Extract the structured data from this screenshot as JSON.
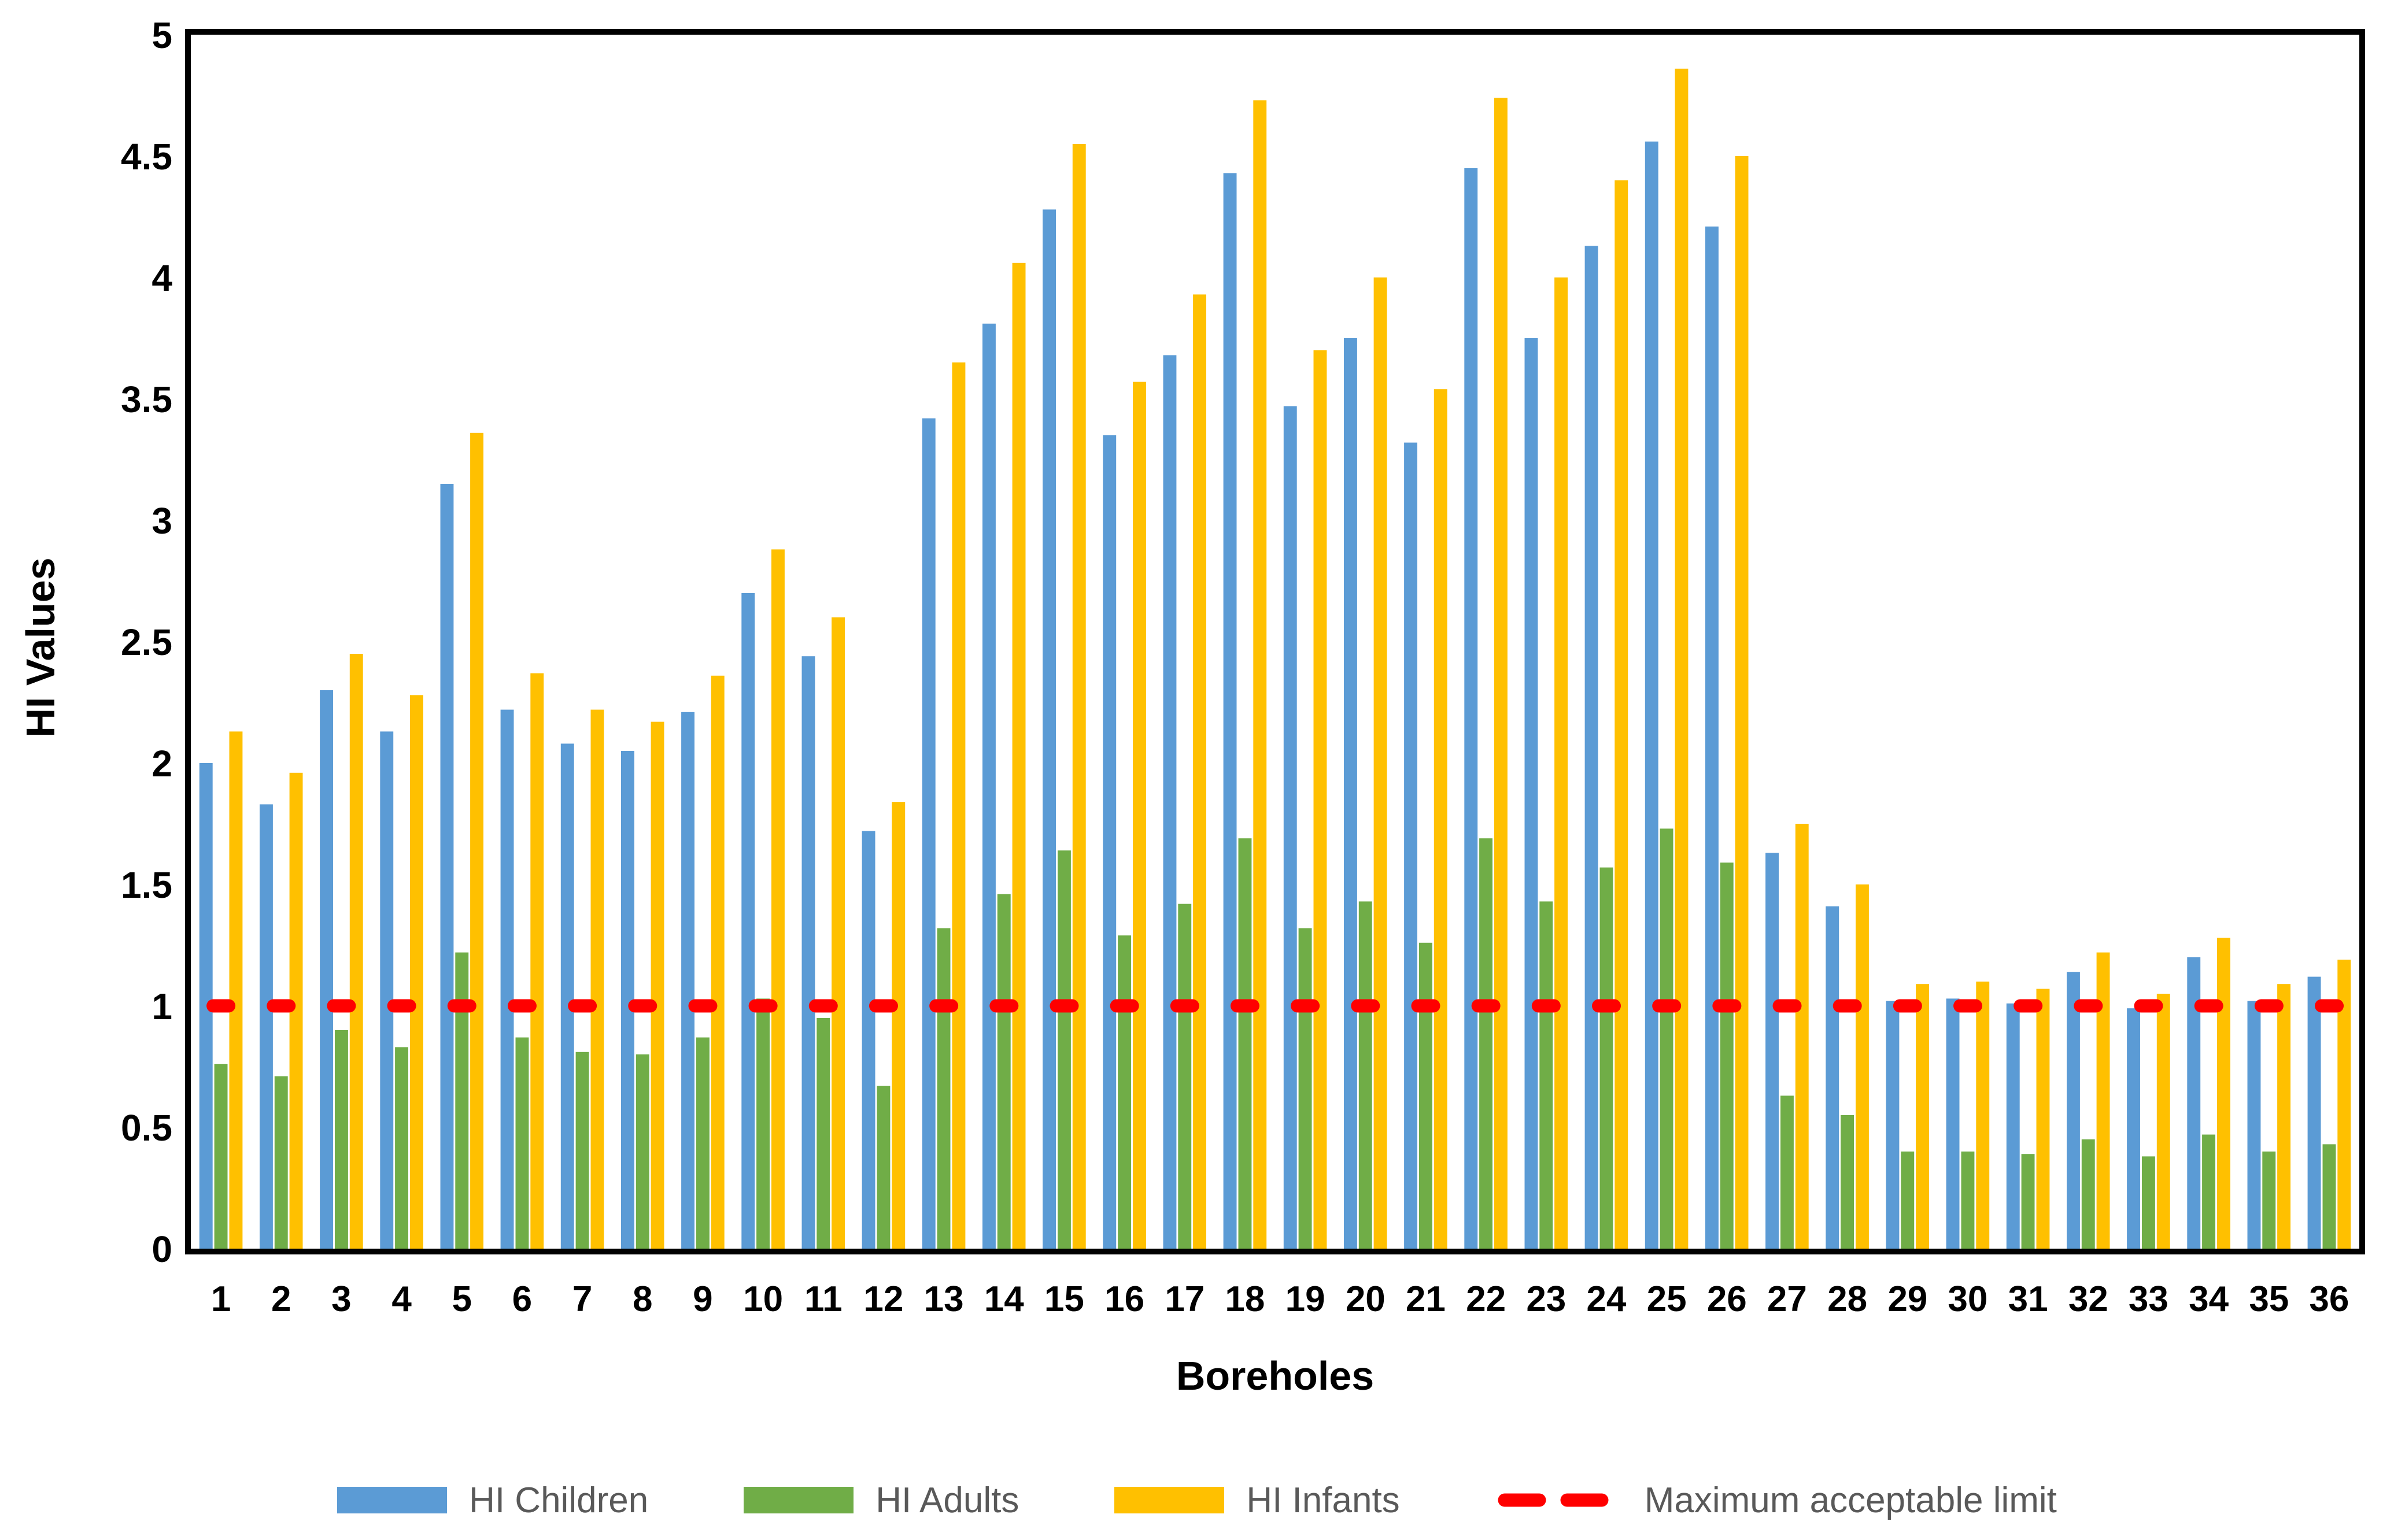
{
  "chart_data": {
    "type": "bar",
    "title": "",
    "xlabel": "Boreholes",
    "ylabel": "HI Values",
    "ylim": [
      0,
      5
    ],
    "ytick_step": 0.5,
    "ytick_labels": [
      "0",
      "0.5",
      "1",
      "1.5",
      "2",
      "2.5",
      "3",
      "3.5",
      "4",
      "4.5",
      "5"
    ],
    "grid": false,
    "legend_position": "bottom",
    "plot_border_color": "#000000",
    "categories": [
      "1",
      "2",
      "3",
      "4",
      "5",
      "6",
      "7",
      "8",
      "9",
      "10",
      "11",
      "12",
      "13",
      "14",
      "15",
      "16",
      "17",
      "18",
      "19",
      "20",
      "21",
      "22",
      "23",
      "24",
      "25",
      "26",
      "27",
      "28",
      "29",
      "30",
      "31",
      "32",
      "33",
      "34",
      "35",
      "36"
    ],
    "series": [
      {
        "name": "HI Children",
        "color": "#5B9BD5",
        "values": [
          2.0,
          1.83,
          2.3,
          2.13,
          3.15,
          2.22,
          2.08,
          2.05,
          2.21,
          2.7,
          2.44,
          1.72,
          3.42,
          3.81,
          4.28,
          3.35,
          3.68,
          4.43,
          3.47,
          3.75,
          3.32,
          4.45,
          3.75,
          4.13,
          4.56,
          4.21,
          1.63,
          1.41,
          1.02,
          1.03,
          1.01,
          1.14,
          0.99,
          1.2,
          1.02,
          1.12
        ]
      },
      {
        "name": "HI Adults",
        "color": "#70AD47",
        "values": [
          0.76,
          0.71,
          0.9,
          0.83,
          1.22,
          0.87,
          0.81,
          0.8,
          0.87,
          1.03,
          0.95,
          0.67,
          1.32,
          1.46,
          1.64,
          1.29,
          1.42,
          1.69,
          1.32,
          1.43,
          1.26,
          1.69,
          1.43,
          1.57,
          1.73,
          1.59,
          0.63,
          0.55,
          0.4,
          0.4,
          0.39,
          0.45,
          0.38,
          0.47,
          0.4,
          0.43
        ]
      },
      {
        "name": "HI Infants",
        "color": "#FFC000",
        "values": [
          2.13,
          1.96,
          2.45,
          2.28,
          3.36,
          2.37,
          2.22,
          2.17,
          2.36,
          2.88,
          2.6,
          1.84,
          3.65,
          4.06,
          4.55,
          3.57,
          3.93,
          4.73,
          3.7,
          4.0,
          3.54,
          4.74,
          4.0,
          4.4,
          4.86,
          4.5,
          1.75,
          1.5,
          1.09,
          1.1,
          1.07,
          1.22,
          1.05,
          1.28,
          1.09,
          1.19
        ]
      }
    ],
    "reference_line": {
      "label": "Maximum acceptable limit",
      "value": 1.0,
      "color": "#FF0000",
      "style": "dashed"
    }
  },
  "legend": {
    "items": [
      {
        "label": "HI Children",
        "color": "#5B9BD5",
        "icon": "swatch"
      },
      {
        "label": "HI Adults",
        "color": "#70AD47",
        "icon": "swatch"
      },
      {
        "label": "HI Infants",
        "color": "#FFC000",
        "icon": "swatch"
      },
      {
        "label": "Maximum acceptable limit",
        "color": "#FF0000",
        "icon": "dash"
      }
    ],
    "text_color": "#595959"
  }
}
